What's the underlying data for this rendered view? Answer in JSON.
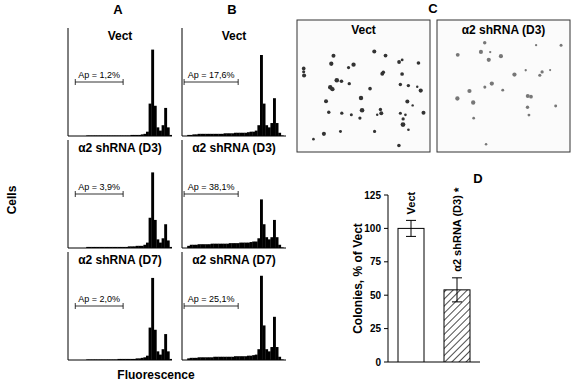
{
  "chart_data": [
    {
      "type": "histogram",
      "title": "Vect",
      "annotation": "Ap = 1,2%",
      "gate": [
        7,
        53
      ],
      "color": "#000000",
      "bins": [
        0,
        2.5,
        5,
        7.5,
        10,
        12.5,
        15,
        17.5,
        20,
        22.5,
        25,
        27.5,
        30,
        32.5,
        35,
        37.5,
        40,
        42.5,
        45,
        47.5,
        50,
        52.5,
        55,
        57.5,
        60,
        62.5,
        65,
        67.5,
        70,
        72.5,
        75,
        77.5,
        80,
        82.5,
        85,
        87.5,
        90,
        92.5,
        95,
        97.5,
        100
      ],
      "counts": [
        0,
        0,
        0,
        0,
        0,
        0,
        0,
        0.5,
        0.5,
        0.5,
        0.5,
        0.5,
        0.5,
        0.5,
        0.5,
        0.5,
        0.5,
        0.5,
        0.5,
        0.5,
        0.5,
        0.5,
        0.5,
        0.5,
        1,
        1,
        1,
        1,
        1.5,
        2,
        4,
        30,
        80,
        28,
        8,
        5,
        10,
        26,
        8,
        1
      ],
      "xlim": [
        0,
        100
      ],
      "ylim": [
        0,
        100
      ],
      "tick_labels": false
    },
    {
      "type": "histogram",
      "title": "α2 shRNA (D3)",
      "annotation": "Ap = 3,9%",
      "gate": [
        7,
        53
      ],
      "color": "#000000",
      "bins": [
        0,
        2.5,
        5,
        7.5,
        10,
        12.5,
        15,
        17.5,
        20,
        22.5,
        25,
        27.5,
        30,
        32.5,
        35,
        37.5,
        40,
        42.5,
        45,
        47.5,
        50,
        52.5,
        55,
        57.5,
        60,
        62.5,
        65,
        67.5,
        70,
        72.5,
        75,
        77.5,
        80,
        82.5,
        85,
        87.5,
        90,
        92.5,
        95,
        97.5,
        100
      ],
      "counts": [
        0,
        0,
        0,
        0,
        0,
        0,
        0,
        1,
        1,
        1,
        1,
        1,
        1,
        1,
        1,
        1,
        1,
        1,
        1,
        1,
        1,
        1,
        1,
        1.5,
        1.5,
        1.5,
        2,
        2,
        2,
        3,
        5,
        28,
        70,
        26,
        8,
        5,
        9,
        22,
        7,
        1
      ],
      "xlim": [
        0,
        100
      ],
      "ylim": [
        0,
        100
      ],
      "tick_labels": false
    },
    {
      "type": "histogram",
      "title": "α2 shRNA (D7)",
      "annotation": "Ap = 2,0%",
      "gate": [
        7,
        53
      ],
      "color": "#000000",
      "bins": [
        0,
        2.5,
        5,
        7.5,
        10,
        12.5,
        15,
        17.5,
        20,
        22.5,
        25,
        27.5,
        30,
        32.5,
        35,
        37.5,
        40,
        42.5,
        45,
        47.5,
        50,
        52.5,
        55,
        57.5,
        60,
        62.5,
        65,
        67.5,
        70,
        72.5,
        75,
        77.5,
        80,
        82.5,
        85,
        87.5,
        90,
        92.5,
        95,
        97.5,
        100
      ],
      "counts": [
        0,
        0,
        0,
        0,
        0,
        0,
        0,
        0.5,
        0.5,
        0.5,
        0.5,
        0.5,
        0.5,
        0.5,
        0.5,
        0.5,
        0.5,
        0.5,
        0.5,
        1,
        1,
        1,
        1,
        1,
        1,
        1,
        1.5,
        1.5,
        2,
        2.5,
        4,
        30,
        76,
        28,
        8,
        5,
        10,
        24,
        8,
        1
      ],
      "xlim": [
        0,
        100
      ],
      "ylim": [
        0,
        100
      ],
      "tick_labels": false
    },
    {
      "type": "histogram",
      "title": "Vect",
      "annotation": "Ap = 17,6%",
      "gate": [
        2,
        54
      ],
      "color": "#000000",
      "bins": [
        0,
        2.5,
        5,
        7.5,
        10,
        12.5,
        15,
        17.5,
        20,
        22.5,
        25,
        27.5,
        30,
        32.5,
        35,
        37.5,
        40,
        42.5,
        45,
        47.5,
        50,
        52.5,
        55,
        57.5,
        60,
        62.5,
        65,
        67.5,
        70,
        72.5,
        75,
        77.5,
        80,
        82.5,
        85,
        87.5,
        90,
        92.5,
        95,
        97.5,
        100
      ],
      "counts": [
        0,
        0,
        1,
        1,
        1.5,
        1.5,
        2,
        2,
        2,
        2,
        2,
        2,
        2,
        2,
        2,
        2,
        2.5,
        2.5,
        2.5,
        2.5,
        3,
        3,
        3,
        3,
        3,
        3.5,
        4,
        4,
        5,
        10,
        75,
        30,
        10,
        8,
        12,
        35,
        12,
        3,
        0.5,
        0
      ],
      "xlim": [
        0,
        100
      ],
      "ylim": [
        0,
        100
      ],
      "tick_labels": false
    },
    {
      "type": "histogram",
      "title": "α2 shRNA (D3)",
      "annotation": "Ap = 38,1%",
      "gate": [
        2,
        54
      ],
      "color": "#000000",
      "bins": [
        0,
        2.5,
        5,
        7.5,
        10,
        12.5,
        15,
        17.5,
        20,
        22.5,
        25,
        27.5,
        30,
        32.5,
        35,
        37.5,
        40,
        42.5,
        45,
        47.5,
        50,
        52.5,
        55,
        57.5,
        60,
        62.5,
        65,
        67.5,
        70,
        72.5,
        75,
        77.5,
        80,
        82.5,
        85,
        87.5,
        90,
        92.5,
        95,
        97.5,
        100
      ],
      "counts": [
        0,
        0,
        2,
        3,
        3,
        3,
        3.5,
        3.5,
        3.5,
        3.5,
        3.5,
        4,
        4,
        4,
        4,
        4,
        4,
        4,
        4.5,
        4.5,
        4.5,
        4.5,
        5,
        5,
        5,
        5,
        5.5,
        6,
        6,
        9,
        45,
        22,
        10,
        8,
        10,
        26,
        10,
        3,
        0.5,
        0
      ],
      "xlim": [
        0,
        100
      ],
      "ylim": [
        0,
        100
      ],
      "tick_labels": false
    },
    {
      "type": "histogram",
      "title": "α2 shRNA (D7)",
      "annotation": "Ap = 25,1%",
      "gate": [
        2,
        54
      ],
      "color": "#000000",
      "bins": [
        0,
        2.5,
        5,
        7.5,
        10,
        12.5,
        15,
        17.5,
        20,
        22.5,
        25,
        27.5,
        30,
        32.5,
        35,
        37.5,
        40,
        42.5,
        45,
        47.5,
        50,
        52.5,
        55,
        57.5,
        60,
        62.5,
        65,
        67.5,
        70,
        72.5,
        75,
        77.5,
        80,
        82.5,
        85,
        87.5,
        90,
        92.5,
        95,
        97.5,
        100
      ],
      "counts": [
        0,
        0,
        1.5,
        2,
        2,
        2,
        2.5,
        2.5,
        2.5,
        2.5,
        2.5,
        2.5,
        3,
        3,
        3,
        3,
        3,
        3,
        3,
        3,
        3.5,
        3.5,
        3.5,
        3.5,
        3.5,
        4,
        4,
        4.5,
        5,
        10,
        78,
        32,
        10,
        8,
        12,
        40,
        12,
        3,
        0.5,
        0
      ],
      "xlim": [
        0,
        100
      ],
      "ylim": [
        0,
        100
      ],
      "tick_labels": false
    },
    {
      "type": "bar",
      "categories": [
        "Vect",
        "α2 shRNA (D3)"
      ],
      "values": [
        100,
        54
      ],
      "errors": [
        6,
        9
      ],
      "colors": [
        "#ffffff",
        "#ffffff"
      ],
      "y_label": "Colonies, % of Vect",
      "annotation": {
        "category": 1,
        "text": "*"
      },
      "ylim": [
        0,
        125
      ],
      "yticks": [
        0,
        25,
        50,
        75,
        100,
        125
      ]
    }
  ],
  "panel_labels": [
    "A",
    "B",
    "C",
    "D"
  ],
  "axis_labels": {
    "x": "Fluorescence",
    "y": "Cells"
  },
  "images": {
    "labels": [
      "Vect",
      "α2 shRNA (D3)"
    ]
  }
}
